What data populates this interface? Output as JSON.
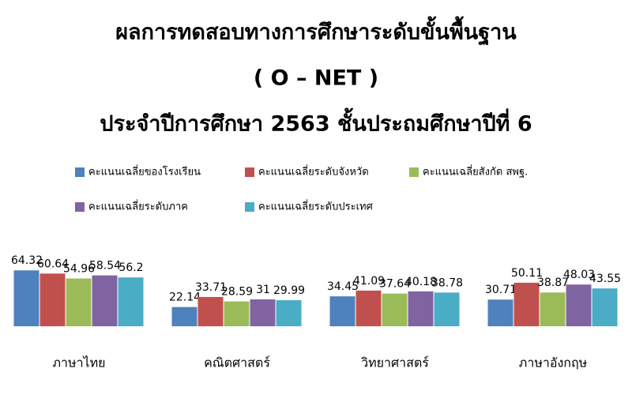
{
  "chart_data": {
    "type": "bar",
    "title": [
      "ผลการทดสอบทางการศึกษาระดับขั้นพื้นฐาน",
      "( O – NET )",
      "ประจำปีการศึกษา  2563  ชั้นประถมศึกษาปีที่  6"
    ],
    "categories": [
      "ภาษาไทย",
      "คณิตศาสตร์",
      "วิทยาศาสตร์",
      "ภาษาอังกฤษ"
    ],
    "series": [
      {
        "name": "คะแนนเฉลี่ยของโรงเรียน",
        "color": "#4f81bd",
        "values": [
          64.32,
          22.14,
          34.45,
          30.71
        ]
      },
      {
        "name": "คะแนนเฉลี่ยระดับจังหวัด",
        "color": "#c0504d",
        "values": [
          60.64,
          33.71,
          41.09,
          50.11
        ]
      },
      {
        "name": "คะแนนเฉลี่ยสังกัด   สพฐ.",
        "color": "#9bbb59",
        "values": [
          54.96,
          28.59,
          37.64,
          38.87
        ]
      },
      {
        "name": "คะแนนเฉลี่ยระดับภาค",
        "color": "#8064a2",
        "values": [
          58.54,
          31,
          40.18,
          48.03
        ]
      },
      {
        "name": "คะแนนเฉลี่ยระดับประเทศ",
        "color": "#4bacc6",
        "values": [
          56.2,
          29.99,
          38.78,
          43.55
        ]
      }
    ]
  }
}
